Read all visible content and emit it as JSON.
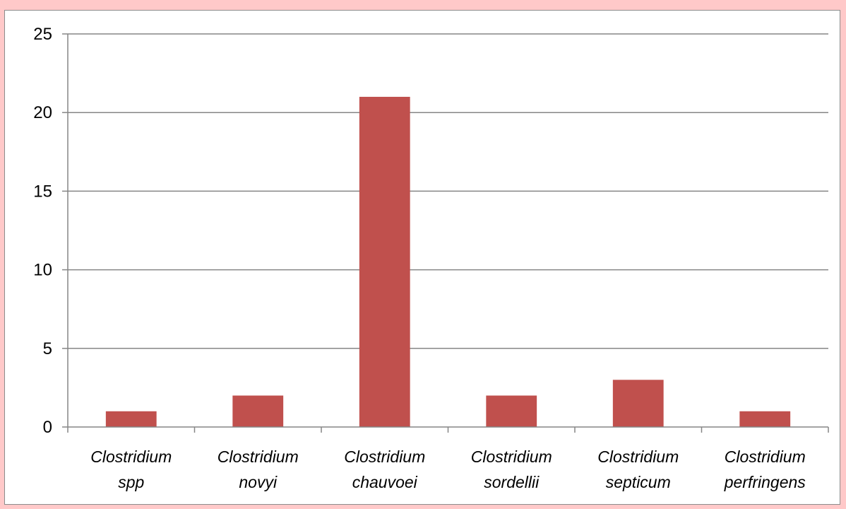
{
  "chart_data": {
    "type": "bar",
    "title": "",
    "xlabel": "",
    "ylabel": "",
    "categories": [
      [
        "Clostridium",
        "spp"
      ],
      [
        "Clostridium",
        "novyi"
      ],
      [
        "Clostridium",
        "chauvoei"
      ],
      [
        "Clostridium",
        "sordellii"
      ],
      [
        "Clostridium",
        "septicum"
      ],
      [
        "Clostridium",
        "perfringens"
      ]
    ],
    "values": [
      1,
      2,
      21,
      2,
      3,
      1
    ],
    "ylim": [
      0,
      25
    ],
    "yticks": [
      0,
      5,
      10,
      15,
      20,
      25
    ],
    "grid": true,
    "legend": "none",
    "colors": {
      "bar": "#c0504d",
      "grid": "#868686",
      "axis": "#868686",
      "page_background": "#ffc9c9"
    }
  }
}
